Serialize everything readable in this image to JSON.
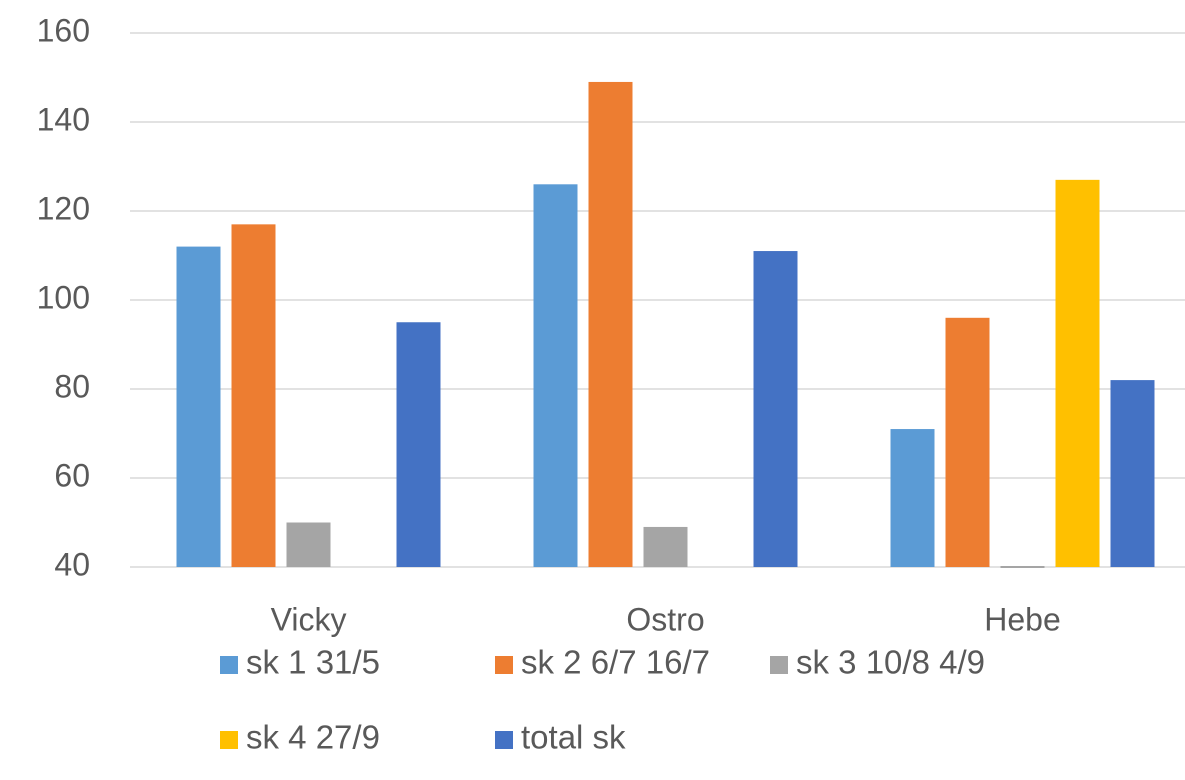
{
  "chart_data": {
    "type": "bar",
    "categories": [
      "Vicky",
      "Ostro",
      "Hebe"
    ],
    "series": [
      {
        "name": "sk 1 31/5",
        "color": "#5b9bd5",
        "values": [
          112,
          126,
          71
        ]
      },
      {
        "name": "sk 2 6/7 16/7",
        "color": "#ed7d31",
        "values": [
          117,
          149,
          96
        ]
      },
      {
        "name": "sk 3 10/8 4/9",
        "color": "#a5a5a5",
        "values": [
          50,
          49,
          40
        ]
      },
      {
        "name": "sk 4 27/9",
        "color": "#ffc000",
        "values": [
          null,
          null,
          127
        ]
      },
      {
        "name": "total sk",
        "color": "#4472c4",
        "values": [
          95,
          111,
          82
        ]
      }
    ],
    "ylim": [
      40,
      160
    ],
    "yticks": [
      40,
      60,
      80,
      100,
      120,
      140,
      160
    ],
    "grid": true,
    "legend": "bottom"
  }
}
